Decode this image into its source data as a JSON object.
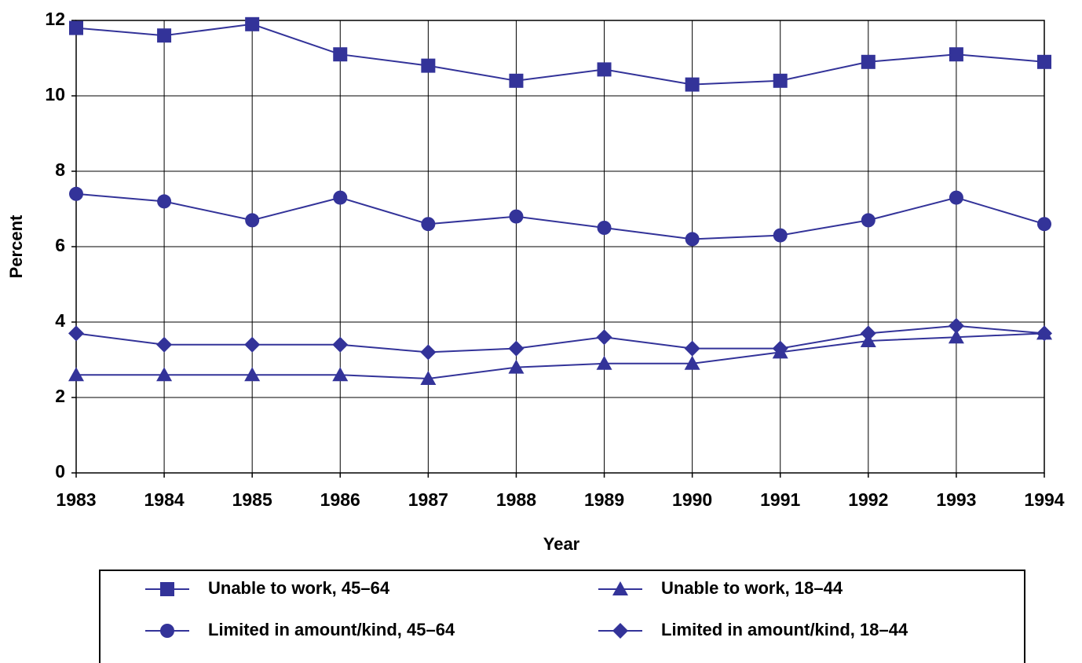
{
  "chart_data": {
    "type": "line",
    "x_label": "Year",
    "y_label": "Percent",
    "x": [
      1983,
      1984,
      1985,
      1986,
      1987,
      1988,
      1989,
      1990,
      1991,
      1992,
      1993,
      1994
    ],
    "xlim": [
      1983,
      1994
    ],
    "xticks": [
      1983,
      1984,
      1985,
      1986,
      1987,
      1988,
      1989,
      1990,
      1991,
      1992,
      1993,
      1994
    ],
    "ylim": [
      0,
      12
    ],
    "yticks": [
      0,
      2,
      4,
      6,
      8,
      10,
      12
    ],
    "grid": true,
    "series": [
      {
        "name": "Unable to work, 45–64",
        "color": "#333399",
        "marker": "square",
        "values": [
          11.8,
          11.6,
          11.9,
          11.1,
          10.8,
          10.4,
          10.7,
          10.3,
          10.4,
          10.9,
          11.1,
          10.9
        ]
      },
      {
        "name": "Unable to work, 18–44",
        "color": "#333399",
        "marker": "triangle",
        "values": [
          2.6,
          2.6,
          2.6,
          2.6,
          2.5,
          2.8,
          2.9,
          2.9,
          3.2,
          3.5,
          3.6,
          3.7
        ]
      },
      {
        "name": "Limited in amount/kind, 45–64",
        "color": "#333399",
        "marker": "circle",
        "values": [
          7.4,
          7.2,
          6.7,
          7.3,
          6.6,
          6.8,
          6.5,
          6.2,
          6.3,
          6.7,
          7.3,
          6.6
        ]
      },
      {
        "name": "Limited in amount/kind, 18–44",
        "color": "#333399",
        "marker": "diamond",
        "values": [
          3.7,
          3.4,
          3.4,
          3.4,
          3.2,
          3.3,
          3.6,
          3.3,
          3.3,
          3.7,
          3.9,
          3.7
        ]
      }
    ]
  }
}
